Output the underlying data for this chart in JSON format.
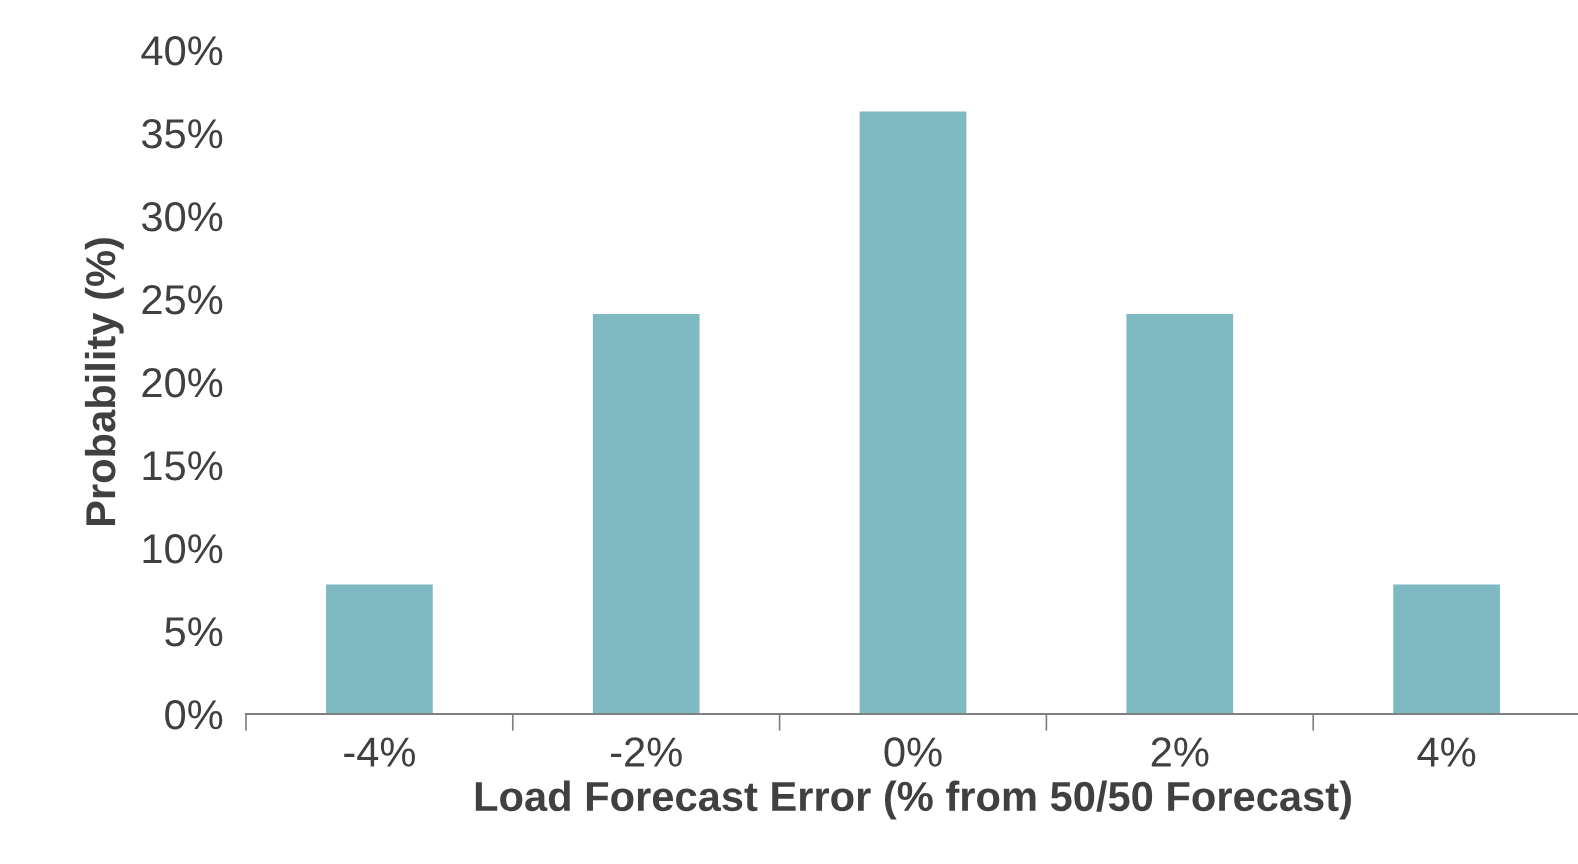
{
  "chart_data": {
    "type": "bar",
    "xlabel": "Load Forecast Error (% from 50/50 Forecast)",
    "ylabel": "Probability (%)",
    "categories": [
      "-4%",
      "-2%",
      "0%",
      "2%",
      "4%"
    ],
    "values": [
      7.8,
      24.1,
      36.3,
      24.1,
      7.8
    ],
    "color": "#7fb9c2",
    "ylim": [
      0,
      40
    ],
    "yticks": [
      {
        "value": 0,
        "label": "0%"
      },
      {
        "value": 5,
        "label": "5%"
      },
      {
        "value": 10,
        "label": "10%"
      },
      {
        "value": 15,
        "label": "15%"
      },
      {
        "value": 20,
        "label": "20%"
      },
      {
        "value": 25,
        "label": "25%"
      },
      {
        "value": 30,
        "label": "30%"
      },
      {
        "value": 35,
        "label": "35%"
      },
      {
        "value": 40,
        "label": "40%"
      }
    ],
    "grid": false,
    "legend": false
  }
}
